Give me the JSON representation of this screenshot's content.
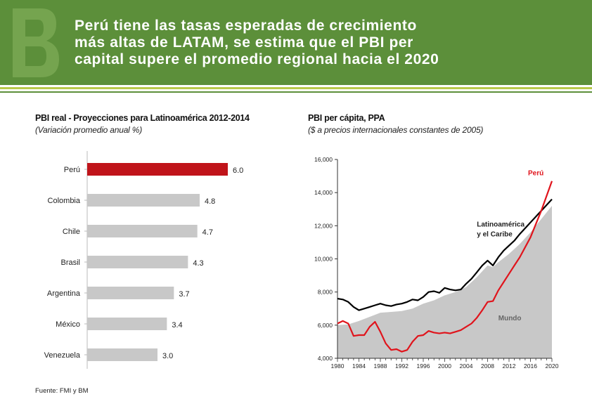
{
  "slide": {
    "title_lines": [
      "Perú tiene las tasas esperadas de crecimiento",
      "más altas de LATAM,  se estima que el PBI per",
      "capital supere el promedio regional hacia el 2020"
    ],
    "source": "Fuente: FMI y BM"
  },
  "colors": {
    "header": "#5c8f3a",
    "accent_stripe": "#b9c94a",
    "highlight_bar": "#c0141a",
    "bar": "#c8c8c8",
    "world_area": "#c8c8c8",
    "latam_line": "#000000",
    "peru_line": "#e0141c"
  },
  "chart_data": [
    {
      "type": "bar",
      "orientation": "horizontal",
      "title": "PBI real - Proyecciones para Latinoamérica 2012-2014",
      "subtitle": "(Variación promedio anual %)",
      "categories": [
        "Perú",
        "Colombia",
        "Chile",
        "Brasil",
        "Argentina",
        "México",
        "Venezuela"
      ],
      "values": [
        6.0,
        4.8,
        4.7,
        4.3,
        3.7,
        3.4,
        3.0
      ],
      "value_labels": [
        "6.0",
        "4.8",
        "4.7",
        "4.3",
        "3.7",
        "3.4",
        "3.0"
      ],
      "highlight": "Perú"
    },
    {
      "type": "line",
      "title": "PBI per cápita, PPA",
      "subtitle": "($ a precios internacionales constantes de 2005)",
      "ylim": [
        4000,
        16000
      ],
      "yticks": [
        4000,
        6000,
        8000,
        10000,
        12000,
        14000,
        16000
      ],
      "ytick_labels": [
        "4,000",
        "6,000",
        "8,000",
        "10,000",
        "12,000",
        "14,000",
        "16,000"
      ],
      "xlim": [
        1980,
        2020
      ],
      "xticks": [
        1980,
        1984,
        1988,
        1992,
        1996,
        2000,
        2004,
        2008,
        2012,
        2016,
        2020
      ],
      "xtick_labels": [
        "1980",
        "1984",
        "1988",
        "1992",
        "1996",
        "2000",
        "2004",
        "2008",
        "2012",
        "2016",
        "2020"
      ],
      "series": [
        {
          "name": "Mundo",
          "style": "area",
          "x": [
            1980,
            1982,
            1984,
            1986,
            1988,
            1990,
            1992,
            1994,
            1996,
            1998,
            2000,
            2002,
            2004,
            2006,
            2008,
            2009,
            2010,
            2012,
            2014,
            2016,
            2018,
            2020
          ],
          "y": [
            6000,
            6050,
            6250,
            6500,
            6750,
            6800,
            6850,
            7000,
            7300,
            7500,
            7800,
            8000,
            8300,
            8900,
            9600,
            9500,
            9800,
            10300,
            10900,
            11600,
            12400,
            13200
          ]
        },
        {
          "name": "Latinoamérica y el Caribe",
          "style": "line",
          "x": [
            1980,
            1981,
            1982,
            1983,
            1984,
            1985,
            1986,
            1987,
            1988,
            1989,
            1990,
            1991,
            1992,
            1993,
            1994,
            1995,
            1996,
            1997,
            1998,
            1999,
            2000,
            2001,
            2002,
            2003,
            2004,
            2005,
            2006,
            2007,
            2008,
            2009,
            2010,
            2011,
            2012,
            2013,
            2014,
            2016,
            2018,
            2020
          ],
          "y": [
            7600,
            7550,
            7400,
            7100,
            6900,
            7000,
            7100,
            7200,
            7300,
            7200,
            7150,
            7250,
            7300,
            7400,
            7550,
            7500,
            7700,
            8000,
            8050,
            7950,
            8250,
            8150,
            8100,
            8150,
            8500,
            8800,
            9200,
            9600,
            9900,
            9600,
            10100,
            10500,
            10800,
            11100,
            11500,
            12200,
            12900,
            13600
          ]
        },
        {
          "name": "Perú",
          "style": "line",
          "x": [
            1980,
            1981,
            1982,
            1983,
            1984,
            1985,
            1986,
            1987,
            1988,
            1989,
            1990,
            1991,
            1992,
            1993,
            1994,
            1995,
            1996,
            1997,
            1998,
            1999,
            2000,
            2001,
            2002,
            2003,
            2004,
            2005,
            2006,
            2007,
            2008,
            2009,
            2010,
            2011,
            2012,
            2013,
            2014,
            2016,
            2018,
            2020
          ],
          "y": [
            6100,
            6250,
            6100,
            5350,
            5400,
            5400,
            5900,
            6200,
            5600,
            4900,
            4500,
            4550,
            4400,
            4500,
            5000,
            5350,
            5400,
            5650,
            5550,
            5500,
            5550,
            5500,
            5600,
            5700,
            5900,
            6100,
            6450,
            6900,
            7400,
            7450,
            8100,
            8600,
            9100,
            9600,
            10100,
            11300,
            12900,
            14700
          ]
        }
      ],
      "labels": {
        "peru": "Perú",
        "latam_line1": "Latinoamérica",
        "latam_line2": "y el Caribe",
        "world": "Mundo"
      }
    }
  ]
}
